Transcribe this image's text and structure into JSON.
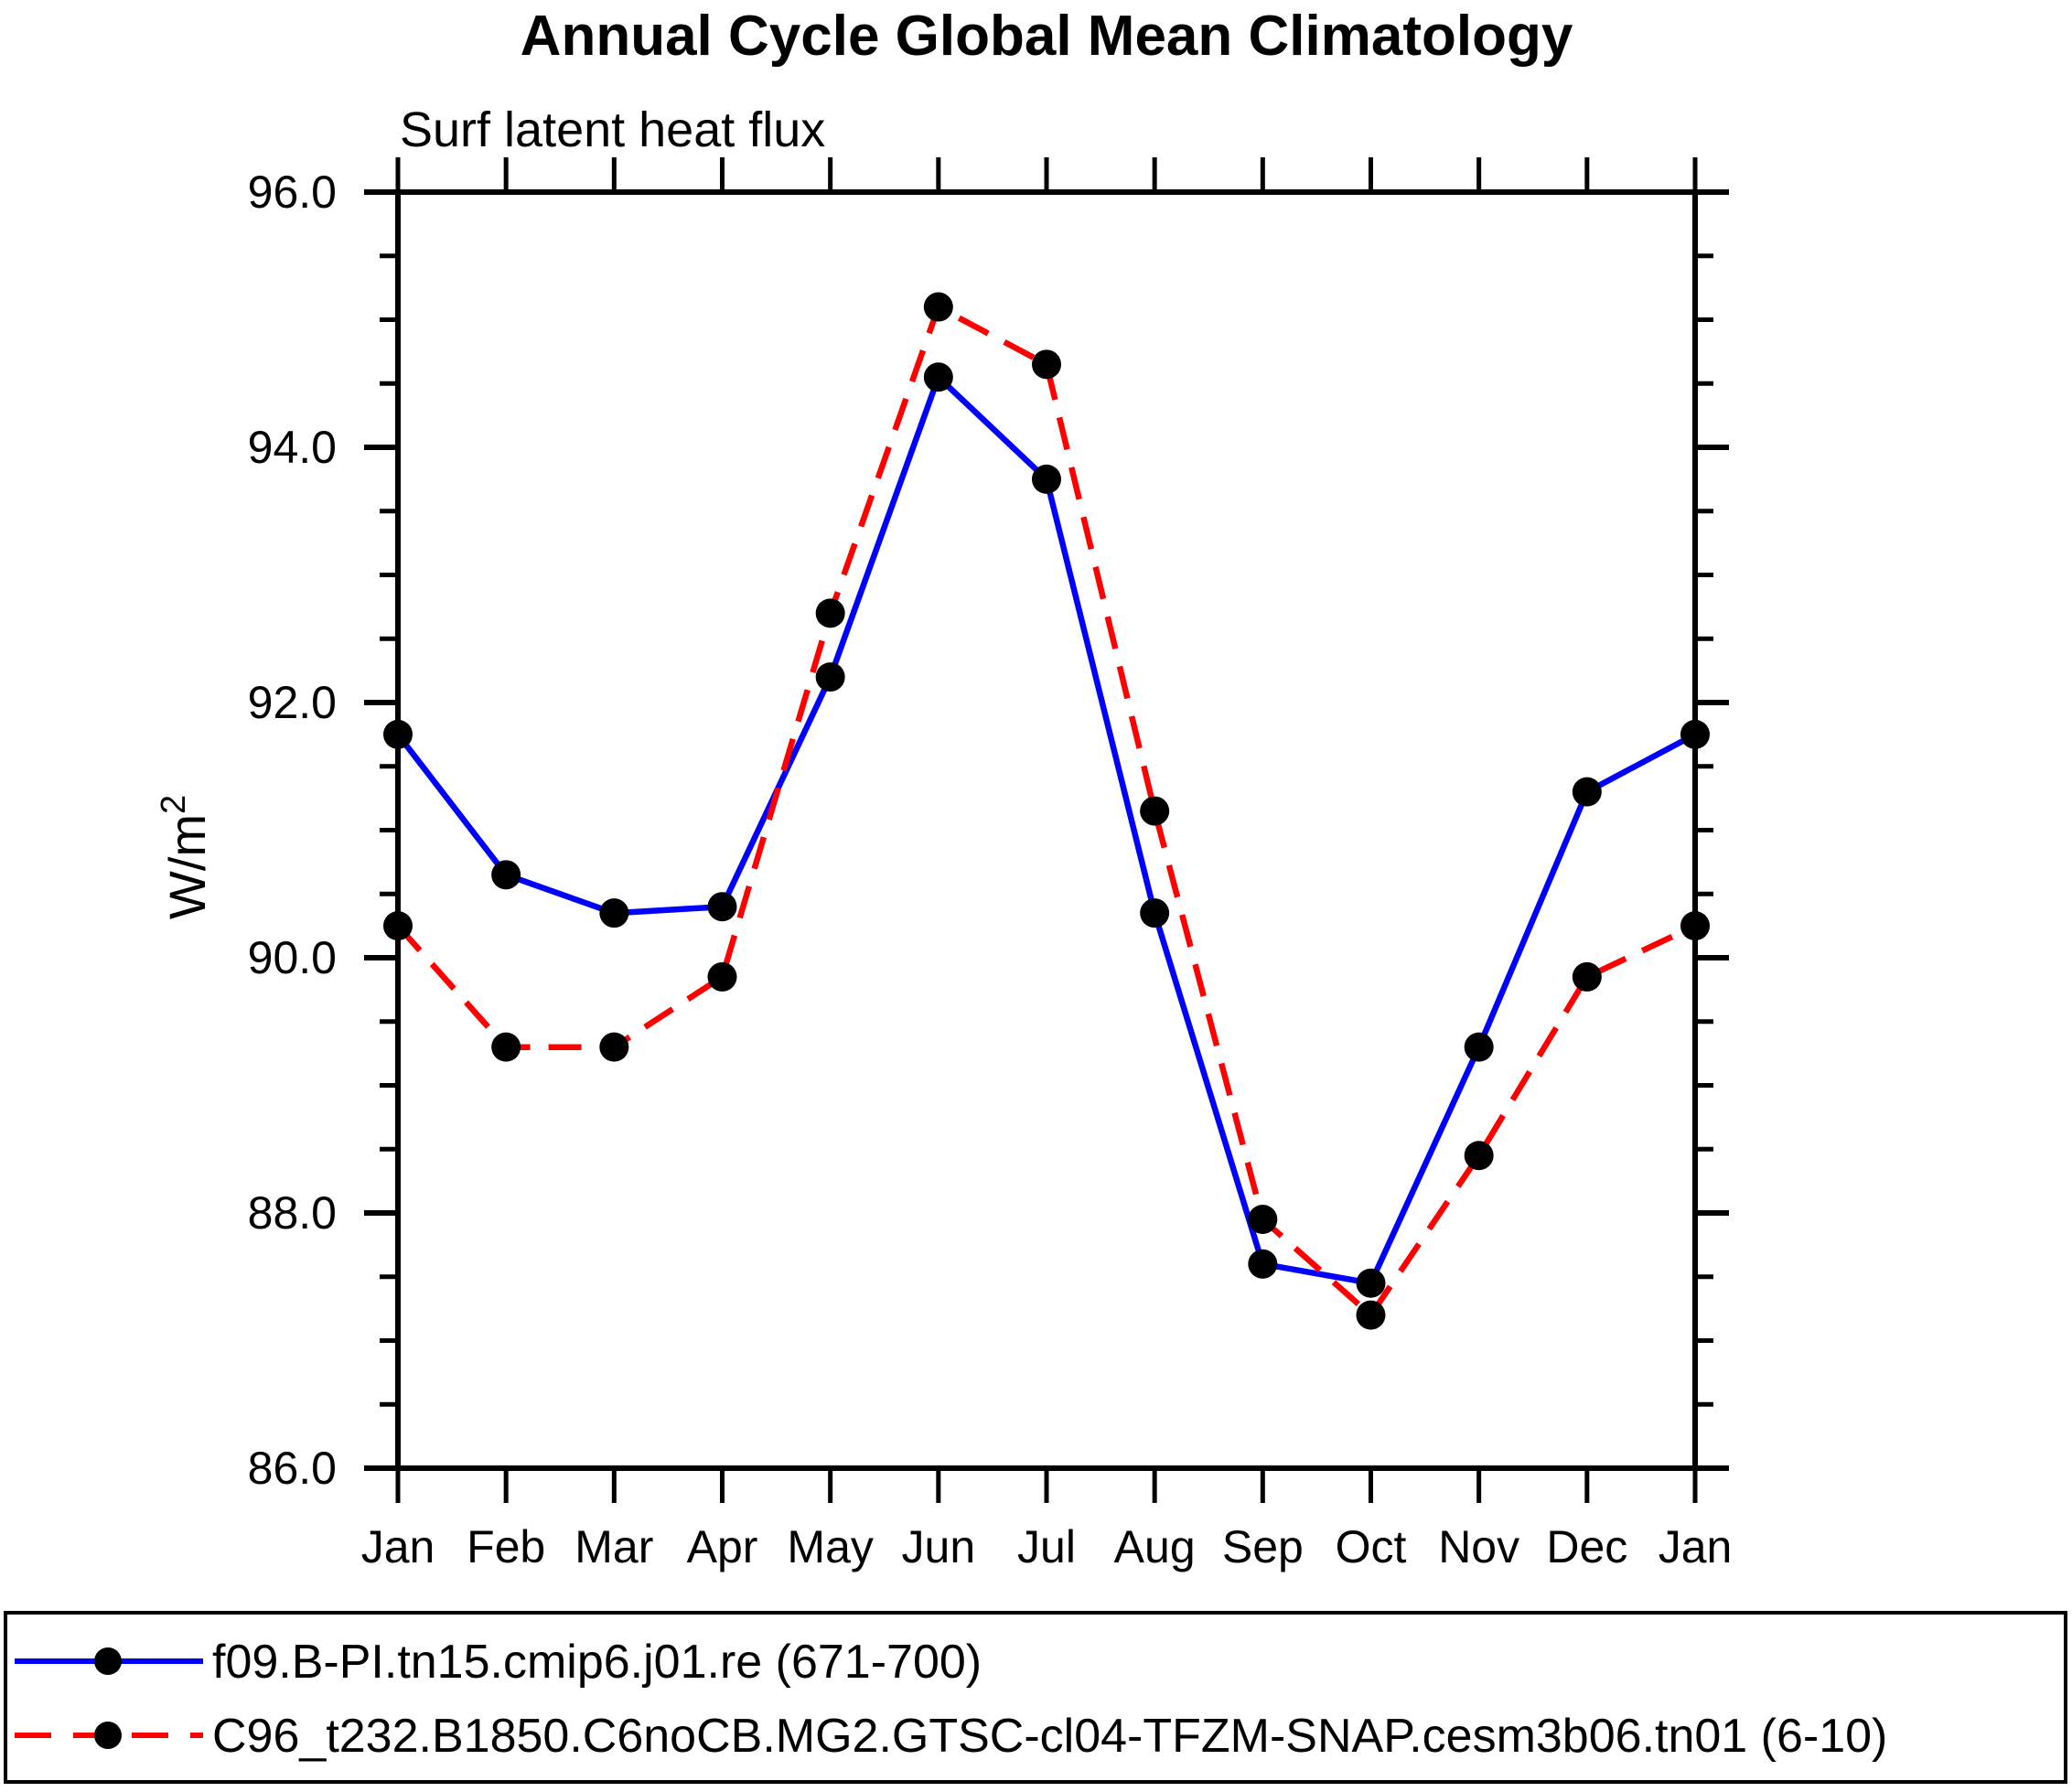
{
  "chart_data": {
    "type": "line",
    "title": "Annual Cycle Global Mean Climatology",
    "subtitle": "Surf latent heat flux",
    "ylabel": "W/m²",
    "ylabel_base": "W/m",
    "ylabel_exp": "2",
    "categories": [
      "Jan",
      "Feb",
      "Mar",
      "Apr",
      "May",
      "Jun",
      "Jul",
      "Aug",
      "Sep",
      "Oct",
      "Nov",
      "Dec",
      "Jan"
    ],
    "ylim": [
      86.0,
      96.0
    ],
    "ytick_major": [
      86.0,
      88.0,
      90.0,
      92.0,
      94.0,
      96.0
    ],
    "ytick_labels": [
      "86.0",
      "88.0",
      "90.0",
      "92.0",
      "94.0",
      "96.0"
    ],
    "ytick_minor_step": 0.5,
    "grid": false,
    "legend_position": "bottom",
    "series": [
      {
        "name": "f09.B-PI.tn15.cmip6.j01.re (671-700)",
        "color": "#0000FF",
        "line_style": "solid",
        "marker": "circle",
        "marker_color": "#000000",
        "values": [
          91.75,
          90.65,
          90.35,
          90.4,
          92.2,
          94.55,
          93.75,
          90.35,
          87.6,
          87.45,
          89.3,
          91.3,
          91.75
        ]
      },
      {
        "name": "C96_t232.B1850.C6noCB.MG2.GTSC-cl04-TFZM-SNAP.cesm3b06.tn01 (6-10)",
        "color": "#FF0000",
        "line_style": "dashed",
        "marker": "circle",
        "marker_color": "#000000",
        "values": [
          90.25,
          89.3,
          89.3,
          89.85,
          92.7,
          95.1,
          94.65,
          91.15,
          87.95,
          87.2,
          88.45,
          89.85,
          90.25
        ]
      }
    ],
    "axis_color": "#000000",
    "background_color": "#FFFFFF"
  }
}
